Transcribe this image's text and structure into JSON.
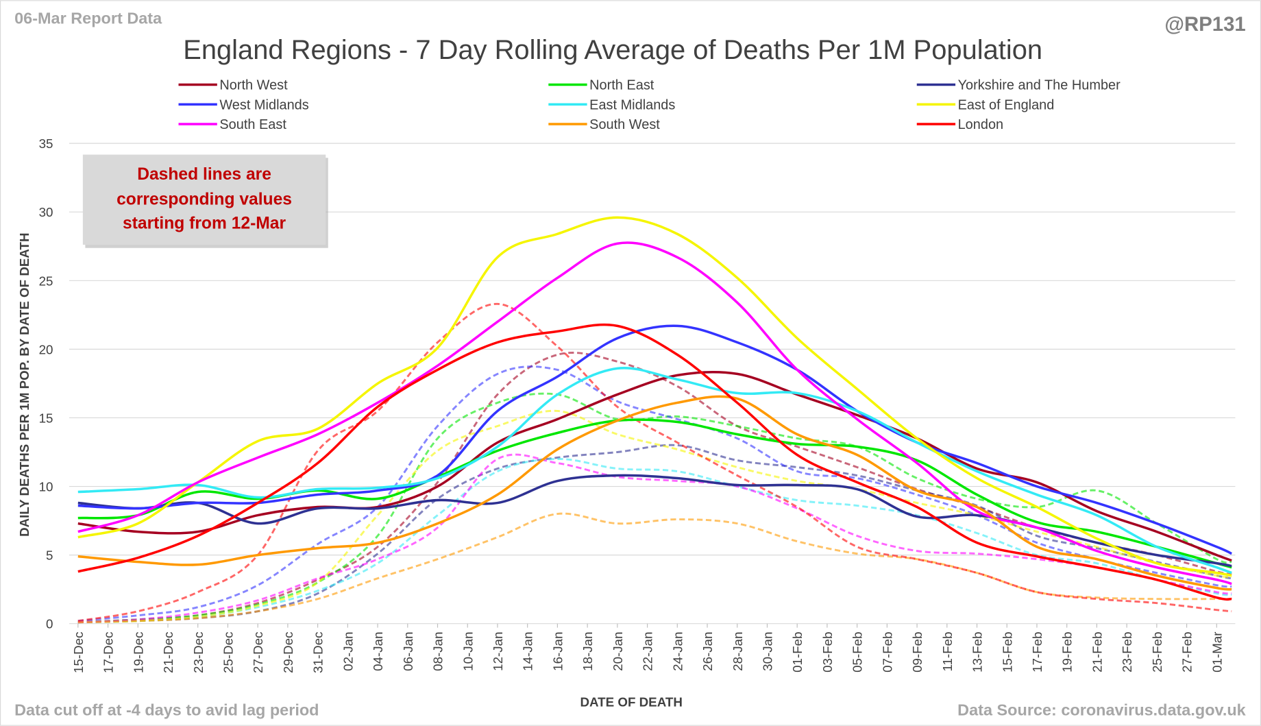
{
  "header": {
    "report_label": "06-Mar Report Data",
    "handle": "@RP131",
    "footer_left": "Data cut off at -4 days to avid lag period",
    "footer_right": "Data Source: coronavirus.data.gov.uk"
  },
  "annotation": {
    "lines": [
      "Dashed lines are",
      "corresponding values",
      "starting from 12-Mar"
    ]
  },
  "chart_data": {
    "type": "line",
    "title": "England Regions - 7 Day Rolling Average of Deaths Per 1M Population",
    "xlabel": "DATE OF DEATH",
    "ylabel": "DAILY DEATHS PER 1M POP. BY DATE OF DEATH",
    "ylim": [
      0,
      35
    ],
    "yticks": [
      0,
      5,
      10,
      15,
      20,
      25,
      30,
      35
    ],
    "grid": true,
    "legend_position": "top",
    "xticks": [
      "15-Dec",
      "17-Dec",
      "19-Dec",
      "21-Dec",
      "23-Dec",
      "25-Dec",
      "27-Dec",
      "29-Dec",
      "31-Dec",
      "02-Jan",
      "04-Jan",
      "06-Jan",
      "08-Jan",
      "10-Jan",
      "12-Jan",
      "14-Jan",
      "16-Jan",
      "18-Jan",
      "20-Jan",
      "22-Jan",
      "24-Jan",
      "26-Jan",
      "28-Jan",
      "30-Jan",
      "01-Feb",
      "03-Feb",
      "05-Feb",
      "07-Feb",
      "09-Feb",
      "11-Feb",
      "13-Feb",
      "15-Feb",
      "17-Feb",
      "19-Feb",
      "21-Feb",
      "23-Feb",
      "25-Feb",
      "27-Feb",
      "01-Mar"
    ],
    "x": [
      "15-Dec",
      "19-Dec",
      "23-Dec",
      "27-Dec",
      "31-Dec",
      "04-Jan",
      "08-Jan",
      "12-Jan",
      "16-Jan",
      "20-Jan",
      "24-Jan",
      "28-Jan",
      "01-Feb",
      "05-Feb",
      "09-Feb",
      "13-Feb",
      "17-Feb",
      "21-Feb",
      "25-Feb",
      "01-Mar",
      "02-Mar"
    ],
    "series": [
      {
        "name": "North West",
        "color": "#a50021",
        "dashed": false,
        "values": [
          7.3,
          6.7,
          6.7,
          7.9,
          8.5,
          8.5,
          10.0,
          13.2,
          14.9,
          16.7,
          18.1,
          18.2,
          16.7,
          15.2,
          13.5,
          11.3,
          10.3,
          8.2,
          6.7,
          5.0,
          4.6
        ]
      },
      {
        "name": "North East",
        "color": "#00e600",
        "dashed": false,
        "values": [
          7.7,
          7.9,
          9.6,
          9.1,
          9.7,
          9.1,
          10.7,
          12.6,
          13.9,
          14.8,
          14.7,
          13.8,
          13.1,
          12.9,
          11.9,
          9.4,
          7.4,
          6.7,
          5.6,
          4.4,
          4.1
        ]
      },
      {
        "name": "Yorkshire and The Humber",
        "color": "#2e3192",
        "dashed": false,
        "values": [
          8.8,
          8.4,
          8.8,
          7.3,
          8.4,
          8.4,
          9.0,
          8.8,
          10.4,
          10.8,
          10.6,
          10.1,
          10.1,
          9.8,
          7.8,
          7.9,
          7.0,
          5.9,
          5.0,
          4.4,
          4.2
        ]
      },
      {
        "name": "West Midlands",
        "color": "#3333ff",
        "dashed": false,
        "values": [
          8.6,
          8.4,
          8.8,
          8.8,
          9.4,
          9.7,
          10.8,
          15.5,
          18.0,
          20.8,
          21.7,
          20.5,
          18.5,
          15.5,
          13.2,
          11.7,
          10.0,
          8.8,
          7.3,
          5.6,
          5.1
        ]
      },
      {
        "name": "East Midlands",
        "color": "#33eaf5",
        "dashed": false,
        "values": [
          9.6,
          9.8,
          10.1,
          9.2,
          9.8,
          9.9,
          10.6,
          12.9,
          16.7,
          18.6,
          17.8,
          16.8,
          16.8,
          15.5,
          13.2,
          11.1,
          9.4,
          7.9,
          5.6,
          4.1,
          3.7
        ]
      },
      {
        "name": "East of England",
        "color": "#f5f500",
        "dashed": false,
        "values": [
          6.3,
          7.3,
          10.3,
          13.3,
          14.2,
          17.5,
          20.1,
          26.7,
          28.4,
          29.6,
          28.4,
          25.2,
          20.8,
          17.1,
          13.5,
          10.6,
          8.5,
          6.2,
          4.4,
          3.7,
          3.5
        ]
      },
      {
        "name": "South East",
        "color": "#ff00ff",
        "dashed": false,
        "values": [
          6.7,
          7.9,
          10.3,
          12.1,
          13.8,
          16.1,
          18.8,
          22.0,
          25.2,
          27.7,
          26.7,
          23.4,
          18.5,
          14.9,
          11.7,
          8.2,
          7.0,
          5.3,
          4.1,
          3.2,
          2.9
        ]
      },
      {
        "name": "South West",
        "color": "#ff9900",
        "dashed": false,
        "values": [
          4.9,
          4.5,
          4.3,
          5.0,
          5.5,
          5.9,
          7.3,
          9.4,
          12.7,
          14.8,
          16.1,
          16.4,
          13.8,
          12.3,
          9.7,
          8.5,
          5.6,
          4.7,
          3.5,
          2.6,
          2.5
        ]
      },
      {
        "name": "London",
        "color": "#ff0000",
        "dashed": false,
        "values": [
          3.8,
          4.8,
          6.4,
          8.8,
          11.7,
          15.8,
          18.5,
          20.5,
          21.3,
          21.7,
          19.6,
          16.1,
          12.3,
          10.3,
          8.5,
          5.9,
          4.9,
          4.1,
          3.2,
          1.9,
          1.8
        ]
      },
      {
        "color": "#a50021",
        "dashed": true,
        "values": [
          0.1,
          0.3,
          0.6,
          1.5,
          3.2,
          5.6,
          10.3,
          16.7,
          19.6,
          19.1,
          17.3,
          14.4,
          12.9,
          11.4,
          9.8,
          8.5,
          7.0,
          5.9,
          5.0,
          3.8,
          3.6
        ]
      },
      {
        "color": "#00e600",
        "dashed": true,
        "values": [
          0.1,
          0.3,
          0.6,
          1.4,
          3.0,
          6.4,
          13.5,
          16.1,
          16.7,
          14.9,
          15.1,
          14.4,
          13.5,
          12.9,
          10.6,
          9.1,
          8.5,
          9.7,
          7.3,
          4.7,
          4.5
        ]
      },
      {
        "color": "#2e3192",
        "dashed": true,
        "values": [
          0.1,
          0.2,
          0.4,
          0.9,
          2.2,
          5.1,
          9.1,
          11.3,
          12.1,
          12.5,
          13.0,
          11.9,
          11.4,
          10.8,
          9.7,
          8.6,
          6.4,
          5.5,
          4.5,
          3.5,
          3.3
        ]
      },
      {
        "color": "#3333ff",
        "dashed": true,
        "values": [
          0.2,
          0.6,
          1.2,
          2.8,
          5.8,
          8.5,
          14.4,
          18.2,
          18.5,
          16.2,
          14.9,
          13.5,
          11.1,
          10.6,
          9.4,
          7.9,
          5.9,
          4.7,
          3.7,
          2.8,
          2.7
        ]
      },
      {
        "color": "#33eaf5",
        "dashed": true,
        "values": [
          0.1,
          0.2,
          0.5,
          1.2,
          2.4,
          4.4,
          7.9,
          11.1,
          12.0,
          11.3,
          11.1,
          10.0,
          9.0,
          8.6,
          7.9,
          6.6,
          5.0,
          4.4,
          3.2,
          2.2,
          2.1
        ]
      },
      {
        "color": "#f5f500",
        "dashed": true,
        "values": [
          0.1,
          0.2,
          0.5,
          1.3,
          3.0,
          7.9,
          12.6,
          14.4,
          15.5,
          13.8,
          12.7,
          11.4,
          10.4,
          9.8,
          8.8,
          7.9,
          6.7,
          5.6,
          4.4,
          3.5,
          3.4
        ]
      },
      {
        "color": "#ff00ff",
        "dashed": true,
        "values": [
          0.1,
          0.3,
          0.8,
          1.7,
          3.3,
          4.7,
          7.0,
          12.0,
          11.7,
          10.7,
          10.4,
          10.0,
          8.4,
          6.4,
          5.3,
          5.1,
          4.7,
          4.1,
          3.2,
          2.3,
          2.2
        ]
      },
      {
        "color": "#ff9900",
        "dashed": true,
        "values": [
          0.1,
          0.2,
          0.4,
          0.9,
          1.8,
          3.3,
          4.7,
          6.3,
          8.0,
          7.3,
          7.6,
          7.3,
          6.0,
          5.1,
          4.7,
          3.7,
          2.3,
          1.9,
          1.8,
          1.8,
          1.8
        ]
      },
      {
        "color": "#ff0000",
        "dashed": true,
        "values": [
          0.2,
          0.9,
          2.3,
          5.0,
          12.6,
          15.5,
          20.5,
          23.3,
          20.2,
          15.8,
          13.2,
          10.8,
          8.5,
          5.6,
          4.7,
          3.7,
          2.3,
          1.8,
          1.5,
          1.0,
          0.9
        ]
      }
    ]
  }
}
